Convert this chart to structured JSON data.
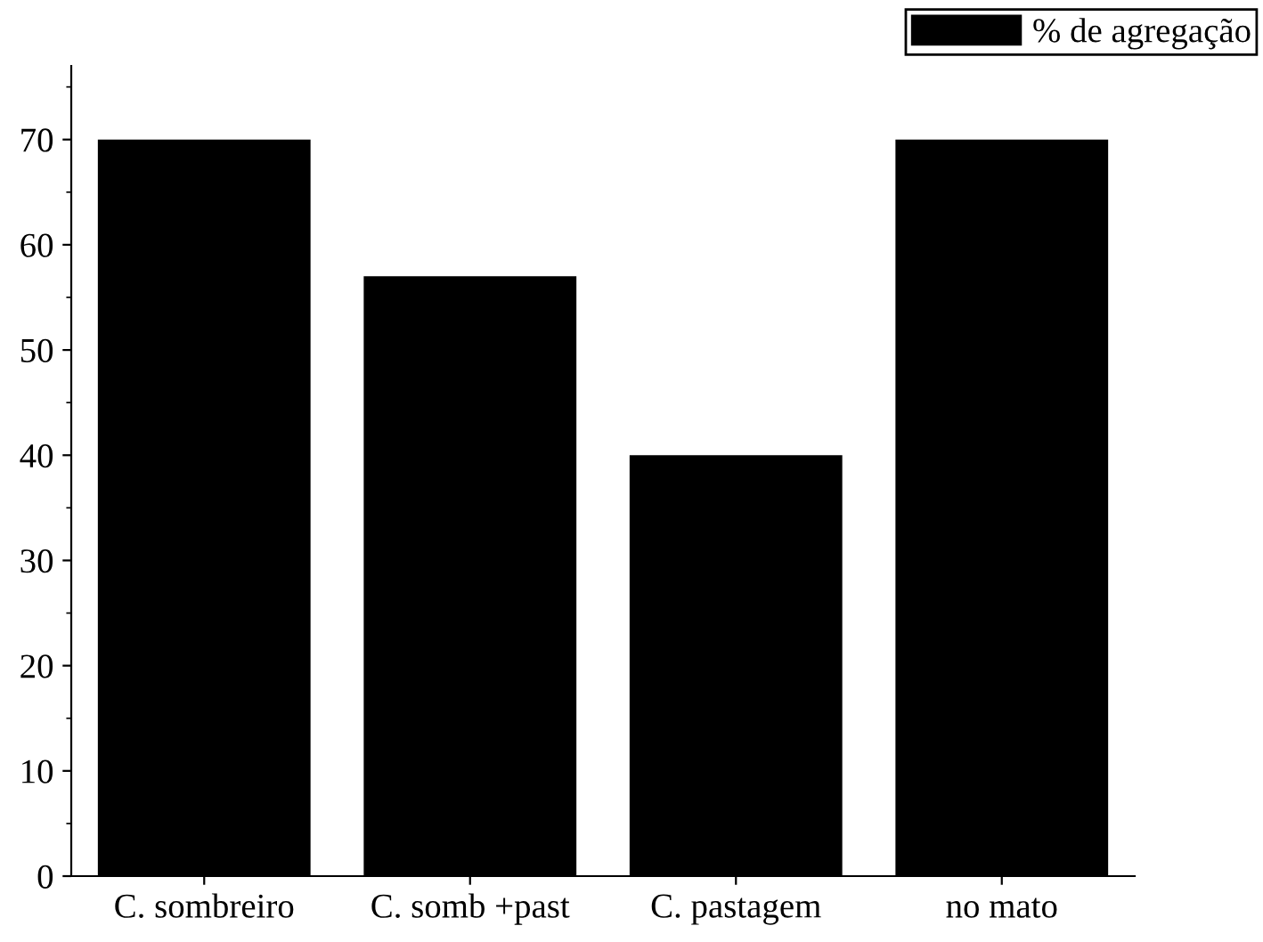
{
  "chart_data": {
    "type": "bar",
    "categories": [
      "C. sombreiro",
      "C. somb +past",
      "C. pastagem",
      "no mato"
    ],
    "series": [
      {
        "name": "% de agregação",
        "color": "#000000",
        "values": [
          70,
          57,
          40,
          70
        ]
      }
    ],
    "ylim": [
      0,
      77
    ],
    "yticks": [
      0,
      10,
      20,
      30,
      40,
      50,
      60,
      70
    ],
    "legend": "top right",
    "grid": false
  }
}
